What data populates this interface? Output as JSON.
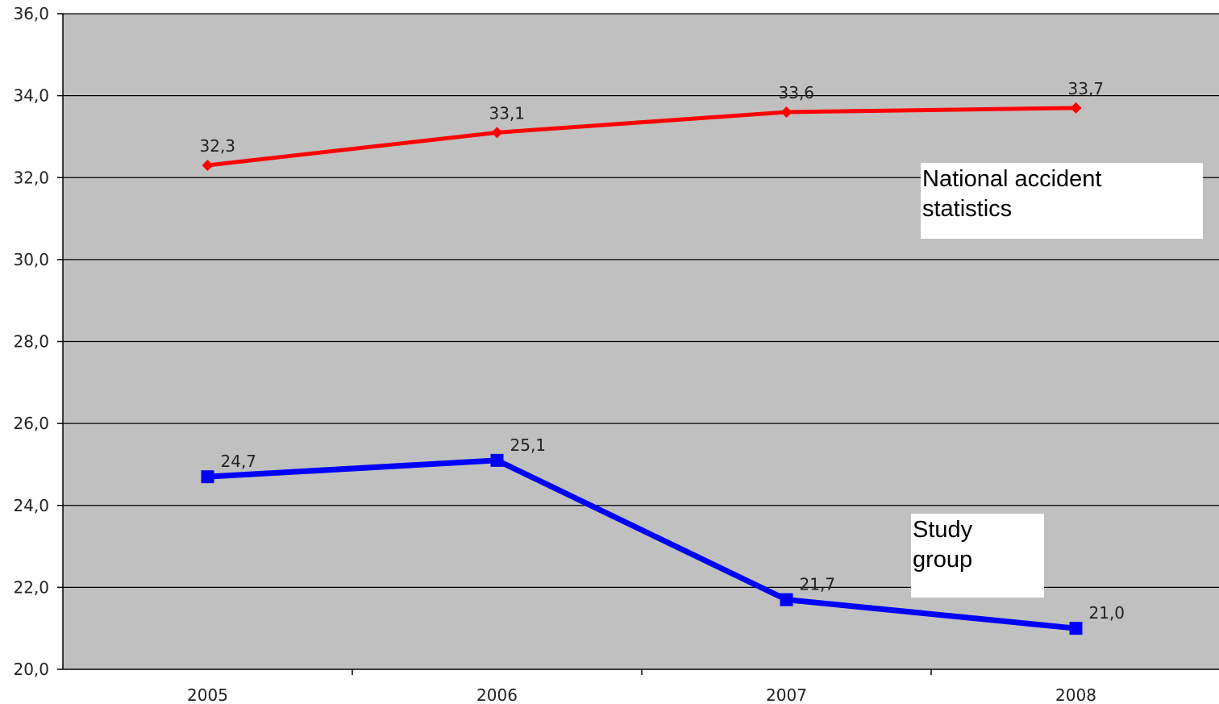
{
  "chart_data": {
    "type": "line",
    "categories": [
      "2005",
      "2006",
      "2007",
      "2008"
    ],
    "series": [
      {
        "name": "National accident statistics",
        "values": [
          32.3,
          33.1,
          33.6,
          33.7
        ],
        "labels": [
          "32,3",
          "33,1",
          "33,6",
          "33,7"
        ],
        "color": "#ff0000",
        "marker": "diamond"
      },
      {
        "name": "Study group",
        "values": [
          24.7,
          25.1,
          21.7,
          21.0
        ],
        "labels": [
          "24,7",
          "25,1",
          "21,7",
          "21,0"
        ],
        "color": "#0000ff",
        "marker": "square"
      }
    ],
    "ylim": [
      20.0,
      36.0
    ],
    "yticks": [
      20.0,
      22.0,
      24.0,
      26.0,
      28.0,
      30.0,
      32.0,
      34.0,
      36.0
    ],
    "ytick_labels": [
      "20,0",
      "22,0",
      "24,0",
      "26,0",
      "28,0",
      "30,0",
      "32,0",
      "34,0",
      "36,0"
    ],
    "grid": true,
    "plot_background": "#c0c0c0",
    "title": "",
    "xlabel": "",
    "ylabel": ""
  },
  "annotations": {
    "national": [
      "National accident",
      "statistics"
    ],
    "study": [
      "Study",
      "group"
    ]
  }
}
